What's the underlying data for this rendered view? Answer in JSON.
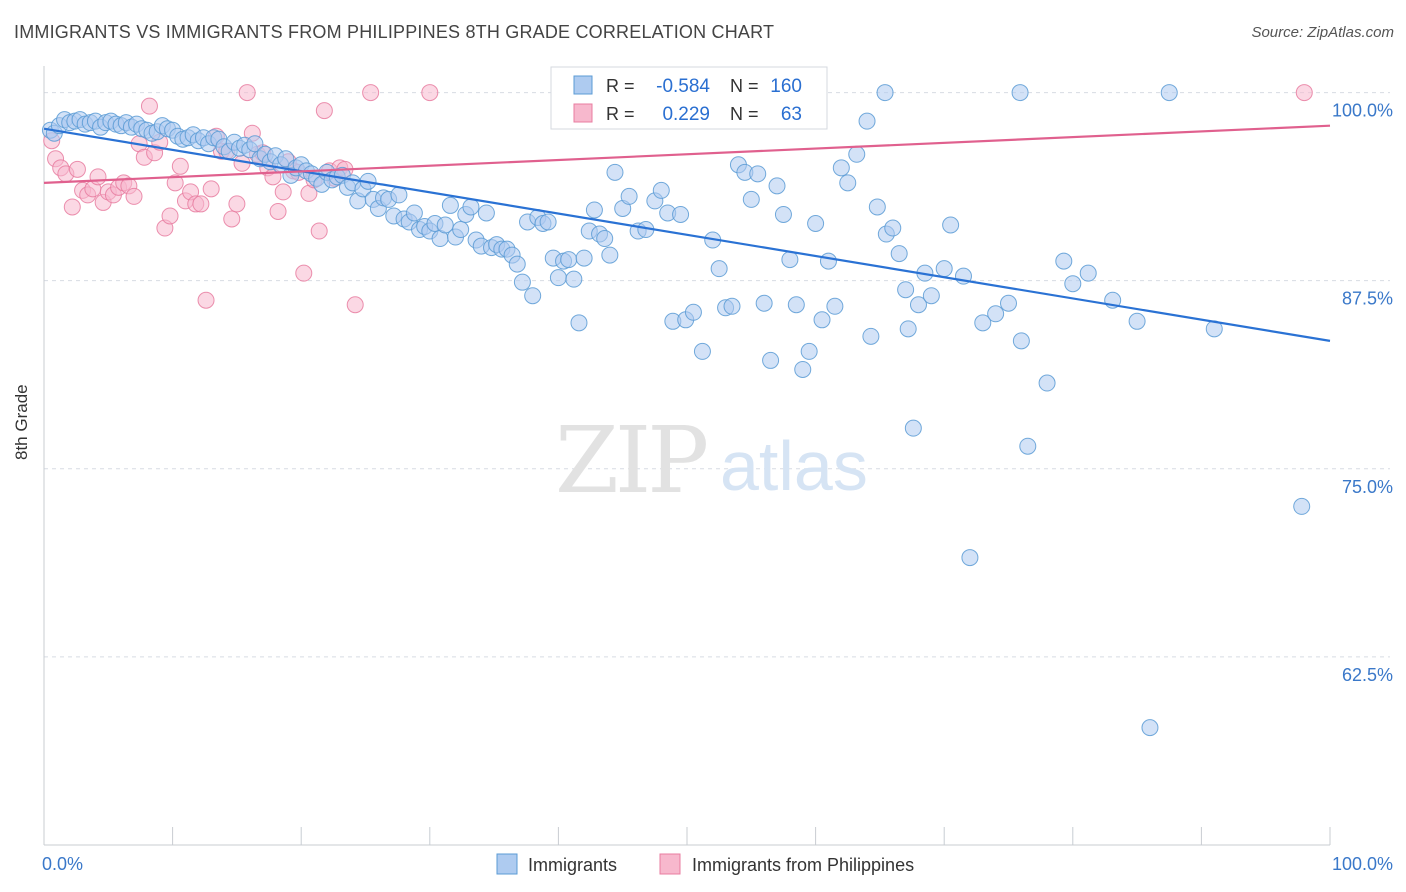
{
  "title": "IMMIGRANTS VS IMMIGRANTS FROM PHILIPPINES 8TH GRADE CORRELATION CHART",
  "source": "Source: ZipAtlas.com",
  "watermark": {
    "zip": "ZIP",
    "atlas": "atlas"
  },
  "colors": {
    "blue": "#5b9bd5",
    "blue_fill": "#aecbf0",
    "blue_line": "#2a72d4",
    "pink": "#e87da0",
    "pink_fill": "#f7b8cd",
    "pink_line": "#e0608e",
    "tick_text": "#3a78c9",
    "grid": "#d7dce3"
  },
  "chart_data": {
    "type": "scatter",
    "title": "IMMIGRANTS VS IMMIGRANTS FROM PHILIPPINES 8TH GRADE CORRELATION CHART",
    "xlabel": "",
    "ylabel": "8th Grade",
    "xlim": [
      0,
      100
    ],
    "ylim": [
      50,
      101.5
    ],
    "x_tick_labels": [
      "0.0%",
      "100.0%"
    ],
    "y_ticks": [
      62.5,
      75.0,
      87.5,
      100.0
    ],
    "y_tick_labels": [
      "62.5%",
      "75.0%",
      "87.5%",
      "100.0%"
    ],
    "grid": true,
    "legend_position": "bottom-center",
    "stats_box": [
      {
        "r_label": "R =",
        "r_value": "-0.584",
        "n_label": "N =",
        "n_value": "160"
      },
      {
        "r_label": "R =",
        "r_value": "0.229",
        "n_label": "N =",
        "n_value": "63"
      }
    ],
    "series": [
      {
        "name": "Immigrants",
        "color": "#5b9bd5",
        "trend": {
          "x": [
            0,
            100
          ],
          "y": [
            97.6,
            83.5
          ]
        },
        "points": [
          [
            0.5,
            97.5
          ],
          [
            0.8,
            97.3
          ],
          [
            1.2,
            97.8
          ],
          [
            1.6,
            98.2
          ],
          [
            2.0,
            98.0
          ],
          [
            2.4,
            98.1
          ],
          [
            2.8,
            98.2
          ],
          [
            3.2,
            97.9
          ],
          [
            3.6,
            98.0
          ],
          [
            4.0,
            98.1
          ],
          [
            4.4,
            97.7
          ],
          [
            4.8,
            98.0
          ],
          [
            5.2,
            98.1
          ],
          [
            5.6,
            97.9
          ],
          [
            6.0,
            97.8
          ],
          [
            6.4,
            98.0
          ],
          [
            6.8,
            97.7
          ],
          [
            7.2,
            97.9
          ],
          [
            7.6,
            97.6
          ],
          [
            8.0,
            97.5
          ],
          [
            8.4,
            97.3
          ],
          [
            8.8,
            97.4
          ],
          [
            9.2,
            97.8
          ],
          [
            9.6,
            97.6
          ],
          [
            10.0,
            97.5
          ],
          [
            10.4,
            97.1
          ],
          [
            10.8,
            96.9
          ],
          [
            11.2,
            97.0
          ],
          [
            11.6,
            97.2
          ],
          [
            12.0,
            96.8
          ],
          [
            12.4,
            97.0
          ],
          [
            12.8,
            96.6
          ],
          [
            13.2,
            97.0
          ],
          [
            13.6,
            96.9
          ],
          [
            14.0,
            96.4
          ],
          [
            14.4,
            96.1
          ],
          [
            14.8,
            96.7
          ],
          [
            15.2,
            96.3
          ],
          [
            15.6,
            96.5
          ],
          [
            16.0,
            96.2
          ],
          [
            16.4,
            96.6
          ],
          [
            16.8,
            95.6
          ],
          [
            17.2,
            95.9
          ],
          [
            17.6,
            95.4
          ],
          [
            18.0,
            95.8
          ],
          [
            18.4,
            95.2
          ],
          [
            18.8,
            95.6
          ],
          [
            19.2,
            94.5
          ],
          [
            19.6,
            95.0
          ],
          [
            20.0,
            95.2
          ],
          [
            20.4,
            94.8
          ],
          [
            20.8,
            94.6
          ],
          [
            21.2,
            94.3
          ],
          [
            21.6,
            93.9
          ],
          [
            22.0,
            94.7
          ],
          [
            22.4,
            94.2
          ],
          [
            22.8,
            94.4
          ],
          [
            23.2,
            94.5
          ],
          [
            23.6,
            93.7
          ],
          [
            24.0,
            94.0
          ],
          [
            24.4,
            92.8
          ],
          [
            24.8,
            93.6
          ],
          [
            25.2,
            94.1
          ],
          [
            25.6,
            92.9
          ],
          [
            26.0,
            92.3
          ],
          [
            26.4,
            93.0
          ],
          [
            26.8,
            92.9
          ],
          [
            27.2,
            91.8
          ],
          [
            27.6,
            93.2
          ],
          [
            28.0,
            91.6
          ],
          [
            28.4,
            91.4
          ],
          [
            28.8,
            92.0
          ],
          [
            29.2,
            90.9
          ],
          [
            29.6,
            91.1
          ],
          [
            30.0,
            90.8
          ],
          [
            30.4,
            91.3
          ],
          [
            30.8,
            90.3
          ],
          [
            31.2,
            91.2
          ],
          [
            31.6,
            92.5
          ],
          [
            32.0,
            90.4
          ],
          [
            32.4,
            90.9
          ],
          [
            32.8,
            91.9
          ],
          [
            33.2,
            92.4
          ],
          [
            33.6,
            90.2
          ],
          [
            34.0,
            89.8
          ],
          [
            34.4,
            92.0
          ],
          [
            34.8,
            89.7
          ],
          [
            35.2,
            89.9
          ],
          [
            35.6,
            89.6
          ],
          [
            36.0,
            89.6
          ],
          [
            36.4,
            89.2
          ],
          [
            36.8,
            88.6
          ],
          [
            37.2,
            87.4
          ],
          [
            37.6,
            91.4
          ],
          [
            38.0,
            86.5
          ],
          [
            38.4,
            91.7
          ],
          [
            38.8,
            91.3
          ],
          [
            39.2,
            91.4
          ],
          [
            39.6,
            89.0
          ],
          [
            40.0,
            87.7
          ],
          [
            40.4,
            88.8
          ],
          [
            40.8,
            88.9
          ],
          [
            41.2,
            87.6
          ],
          [
            41.6,
            84.7
          ],
          [
            42.0,
            89.0
          ],
          [
            42.4,
            90.8
          ],
          [
            42.8,
            92.2
          ],
          [
            43.2,
            90.6
          ],
          [
            43.6,
            90.3
          ],
          [
            44.0,
            89.2
          ],
          [
            44.4,
            94.7
          ],
          [
            45.0,
            92.3
          ],
          [
            45.5,
            93.1
          ],
          [
            46.2,
            90.8
          ],
          [
            46.8,
            90.9
          ],
          [
            47.5,
            92.8
          ],
          [
            48.0,
            93.5
          ],
          [
            48.5,
            92.0
          ],
          [
            48.9,
            84.8
          ],
          [
            49.5,
            91.9
          ],
          [
            49.9,
            84.9
          ],
          [
            50.5,
            85.4
          ],
          [
            51.2,
            82.8
          ],
          [
            52.0,
            90.2
          ],
          [
            52.5,
            88.3
          ],
          [
            53.0,
            85.7
          ],
          [
            53.5,
            85.8
          ],
          [
            54.0,
            95.2
          ],
          [
            54.5,
            94.7
          ],
          [
            55.0,
            92.9
          ],
          [
            55.5,
            94.6
          ],
          [
            56.0,
            86.0
          ],
          [
            56.5,
            82.2
          ],
          [
            57.0,
            93.8
          ],
          [
            57.5,
            91.9
          ],
          [
            58.0,
            88.9
          ],
          [
            58.5,
            85.9
          ],
          [
            59.0,
            81.6
          ],
          [
            59.5,
            82.8
          ],
          [
            60.0,
            91.3
          ],
          [
            60.5,
            84.9
          ],
          [
            61.0,
            88.8
          ],
          [
            61.5,
            85.8
          ],
          [
            62.5,
            94.0
          ],
          [
            63.2,
            95.9
          ],
          [
            64.0,
            98.1
          ],
          [
            64.3,
            83.8
          ],
          [
            64.8,
            92.4
          ],
          [
            65.5,
            90.6
          ],
          [
            66.0,
            91.0
          ],
          [
            66.5,
            89.3
          ],
          [
            67.0,
            86.9
          ],
          [
            67.2,
            84.3
          ],
          [
            67.6,
            77.7
          ],
          [
            68.0,
            85.9
          ],
          [
            68.5,
            88.0
          ],
          [
            69.0,
            86.5
          ],
          [
            70.0,
            88.3
          ],
          [
            71.5,
            87.8
          ],
          [
            72.0,
            69.1
          ],
          [
            73.0,
            84.7
          ],
          [
            74.0,
            85.3
          ],
          [
            75.0,
            86.0
          ],
          [
            76.0,
            83.5
          ],
          [
            76.5,
            76.5
          ],
          [
            78.0,
            80.7
          ],
          [
            80.0,
            87.3
          ],
          [
            81.2,
            88.0
          ],
          [
            85.0,
            84.8
          ],
          [
            97.8,
            72.5
          ],
          [
            86.0,
            57.8
          ],
          [
            56.6,
            100.0
          ],
          [
            65.4,
            100.0
          ],
          [
            75.9,
            100.0
          ],
          [
            87.5,
            100.0
          ],
          [
            62.0,
            95.0
          ],
          [
            70.5,
            91.2
          ],
          [
            79.3,
            88.8
          ],
          [
            83.1,
            86.2
          ],
          [
            91.0,
            84.3
          ]
        ]
      },
      {
        "name": "Immigrants from Philippines",
        "color": "#e87da0",
        "trend": {
          "x": [
            0,
            100
          ],
          "y": [
            94.0,
            97.8
          ]
        },
        "points": [
          [
            0.6,
            96.8
          ],
          [
            0.9,
            95.6
          ],
          [
            1.3,
            95.0
          ],
          [
            1.7,
            94.6
          ],
          [
            2.2,
            92.4
          ],
          [
            2.6,
            94.9
          ],
          [
            3.0,
            93.5
          ],
          [
            3.4,
            93.2
          ],
          [
            3.8,
            93.6
          ],
          [
            4.2,
            94.4
          ],
          [
            4.6,
            92.7
          ],
          [
            5.0,
            93.4
          ],
          [
            5.4,
            93.2
          ],
          [
            5.8,
            93.7
          ],
          [
            6.2,
            94.0
          ],
          [
            6.6,
            93.8
          ],
          [
            7.0,
            93.1
          ],
          [
            7.4,
            96.6
          ],
          [
            7.8,
            95.7
          ],
          [
            8.2,
            99.1
          ],
          [
            8.6,
            96.0
          ],
          [
            9.0,
            96.7
          ],
          [
            9.4,
            91.0
          ],
          [
            9.8,
            91.8
          ],
          [
            10.2,
            94.0
          ],
          [
            10.6,
            95.1
          ],
          [
            11.0,
            92.8
          ],
          [
            11.4,
            93.4
          ],
          [
            11.8,
            92.6
          ],
          [
            12.2,
            92.6
          ],
          [
            12.6,
            86.2
          ],
          [
            13.0,
            93.6
          ],
          [
            13.4,
            97.1
          ],
          [
            13.8,
            96.1
          ],
          [
            14.2,
            96.1
          ],
          [
            14.6,
            91.6
          ],
          [
            15.0,
            92.6
          ],
          [
            15.4,
            95.3
          ],
          [
            15.8,
            100.0
          ],
          [
            16.2,
            97.3
          ],
          [
            16.6,
            95.9
          ],
          [
            17.0,
            96.0
          ],
          [
            17.4,
            95.0
          ],
          [
            17.8,
            94.4
          ],
          [
            18.2,
            92.1
          ],
          [
            18.6,
            93.4
          ],
          [
            19.0,
            95.4
          ],
          [
            19.4,
            94.8
          ],
          [
            19.8,
            94.7
          ],
          [
            20.2,
            88.0
          ],
          [
            20.6,
            93.3
          ],
          [
            21.0,
            94.2
          ],
          [
            21.4,
            90.8
          ],
          [
            21.8,
            98.8
          ],
          [
            22.2,
            94.8
          ],
          [
            22.6,
            94.3
          ],
          [
            23.0,
            95.0
          ],
          [
            23.4,
            94.9
          ],
          [
            24.2,
            85.9
          ],
          [
            25.4,
            100.0
          ],
          [
            30.0,
            100.0
          ],
          [
            59.2,
            100.0
          ],
          [
            98.0,
            100.0
          ]
        ]
      }
    ]
  },
  "legend": {
    "items": [
      {
        "label": "Immigrants"
      },
      {
        "label": "Immigrants from Philippines"
      }
    ]
  }
}
